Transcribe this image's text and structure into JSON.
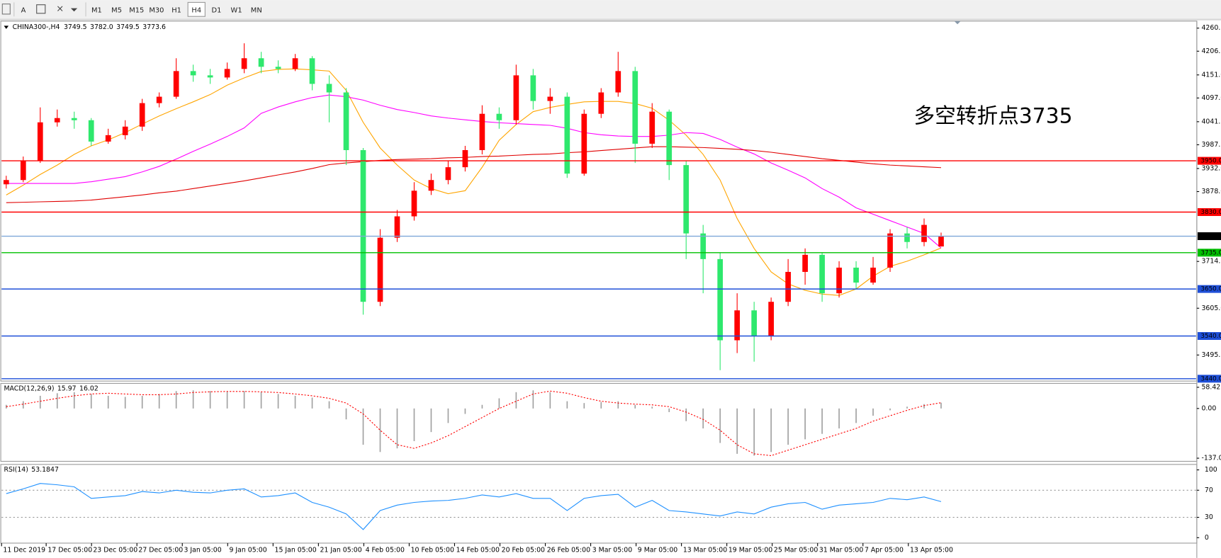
{
  "chart_data": {
    "type": "candlestick",
    "toolbar": {
      "font_button": "A",
      "timeframes": [
        "M1",
        "M5",
        "M15",
        "M30",
        "H1",
        "H4",
        "D1",
        "W1",
        "MN"
      ],
      "active": "H4"
    },
    "title": "CHINA300-,H4",
    "header_ohlc": [
      3749.5,
      {
        "value": 3782,
        "label": "3782.0"
      },
      3749.5,
      3773.6
    ],
    "annotation": "多空转折点3735",
    "annotation_color": "#ff0000",
    "up_color": "#ff0000",
    "down_color": "#2ee86d",
    "candles": [
      [
        3895,
        3915,
        3885,
        3905
      ],
      [
        3905,
        3960,
        3900,
        3950
      ],
      [
        3950,
        4075,
        3945,
        4040
      ],
      [
        4040,
        4070,
        4030,
        4050
      ],
      [
        4050,
        4065,
        4025,
        4045
      ],
      [
        4045,
        4050,
        3985,
        3995
      ],
      [
        3995,
        4025,
        3990,
        4010
      ],
      [
        4010,
        4045,
        4000,
        4030
      ],
      [
        4030,
        4095,
        4020,
        4085
      ],
      [
        4085,
        4110,
        4075,
        4100
      ],
      [
        4100,
        4190,
        4095,
        4160
      ],
      [
        4160,
        4175,
        4135,
        4150
      ],
      [
        4150,
        4165,
        4130,
        4145
      ],
      [
        4145,
        4180,
        4140,
        4165
      ],
      [
        4165,
        4225,
        4155,
        4190
      ],
      [
        4190,
        4205,
        4155,
        4170
      ],
      [
        4170,
        4185,
        4155,
        4165
      ],
      [
        4165,
        4200,
        4160,
        4190
      ],
      [
        4190,
        4195,
        4115,
        4130
      ],
      [
        4130,
        4150,
        4040,
        4110
      ],
      [
        4110,
        4120,
        3940,
        3975
      ],
      [
        3975,
        3980,
        3590,
        3620
      ],
      [
        3620,
        3790,
        3610,
        3770
      ],
      [
        3770,
        3835,
        3760,
        3820
      ],
      [
        3820,
        3900,
        3810,
        3880
      ],
      [
        3880,
        3920,
        3870,
        3905
      ],
      [
        3905,
        3950,
        3895,
        3935
      ],
      [
        3935,
        3985,
        3925,
        3975
      ],
      [
        3975,
        4080,
        3965,
        4060
      ],
      [
        4060,
        4075,
        4025,
        4045
      ],
      [
        4045,
        4175,
        4035,
        4150
      ],
      [
        4150,
        4165,
        4070,
        4090
      ],
      [
        4090,
        4120,
        4060,
        4100
      ],
      [
        4100,
        4110,
        3910,
        3920
      ],
      [
        3920,
        4070,
        3915,
        4060
      ],
      [
        4060,
        4120,
        4050,
        4110
      ],
      [
        4110,
        4205,
        4100,
        4160
      ],
      [
        4160,
        4170,
        3945,
        3990
      ],
      [
        3990,
        4085,
        3980,
        4065
      ],
      [
        4065,
        4070,
        3905,
        3940
      ],
      [
        3940,
        3950,
        3720,
        3780
      ],
      [
        3780,
        3800,
        3640,
        3720
      ],
      [
        3720,
        3735,
        3460,
        3530
      ],
      [
        3530,
        3640,
        3500,
        3600
      ],
      [
        3600,
        3620,
        3480,
        3540
      ],
      [
        3540,
        3630,
        3530,
        3620
      ],
      [
        3620,
        3720,
        3610,
        3690
      ],
      [
        3690,
        3745,
        3660,
        3730
      ],
      [
        3730,
        3735,
        3620,
        3640
      ],
      [
        3640,
        3715,
        3630,
        3700
      ],
      [
        3700,
        3715,
        3650,
        3665
      ],
      [
        3665,
        3725,
        3660,
        3700
      ],
      [
        3700,
        3790,
        3690,
        3780
      ],
      [
        3780,
        3795,
        3745,
        3760
      ],
      [
        3760,
        3815,
        3750,
        3800
      ],
      [
        3749.5,
        3782,
        3749.5,
        3773.6
      ]
    ],
    "ma": [
      {
        "color": "#ffa500",
        "values": [
          3870,
          3893,
          3918,
          3940,
          3965,
          3985,
          3999,
          4016,
          4036,
          4055,
          4072,
          4088,
          4105,
          4127,
          4144,
          4159,
          4164,
          4165,
          4163,
          4160,
          4115,
          4040,
          3980,
          3940,
          3905,
          3885,
          3873,
          3880,
          3935,
          3998,
          4035,
          4065,
          4075,
          4082,
          4088,
          4089,
          4089,
          4084,
          4073,
          4045,
          4010,
          3965,
          3905,
          3815,
          3745,
          3690,
          3662,
          3647,
          3638,
          3635,
          3650,
          3680,
          3703,
          3715,
          3730,
          3746
        ]
      },
      {
        "color": "#ff00ff",
        "values": [
          3897,
          3897,
          3897,
          3897,
          3897,
          3901,
          3907,
          3913,
          3924,
          3937,
          3954,
          3972,
          3989,
          4007,
          4027,
          4061,
          4076,
          4088,
          4098,
          4104,
          4100,
          4092,
          4080,
          4070,
          4063,
          4055,
          4050,
          4046,
          4042,
          4039,
          4037,
          4035,
          4033,
          4026,
          4016,
          4011,
          4008,
          4007,
          4007,
          4010,
          4016,
          4014,
          4000,
          3982,
          3966,
          3945,
          3928,
          3910,
          3885,
          3865,
          3840,
          3825,
          3810,
          3795,
          3780,
          3746
        ]
      },
      {
        "color": "#e00000",
        "values": [
          3852,
          3853,
          3854,
          3855,
          3856,
          3858,
          3862,
          3866,
          3870,
          3875,
          3879,
          3885,
          3891,
          3897,
          3903,
          3910,
          3917,
          3924,
          3932,
          3941,
          3945,
          3948,
          3951,
          3953,
          3954,
          3955,
          3957,
          3958,
          3960,
          3961,
          3963,
          3965,
          3966,
          3969,
          3971,
          3974,
          3977,
          3980,
          3983,
          3983,
          3982,
          3981,
          3979,
          3977,
          3974,
          3970,
          3965,
          3960,
          3955,
          3951,
          3947,
          3943,
          3940,
          3938,
          3936,
          3934
        ]
      }
    ],
    "ylim": [
      3440,
      4260.5
    ],
    "yticks": [
      4260.5,
      4206.5,
      {
        "value": 4151,
        "label": "4151.0"
      },
      {
        "value": 4097,
        "label": "4097.0"
      },
      4041.5,
      3987.5,
      {
        "value": 3932,
        "label": "3932.0"
      },
      {
        "value": 3878,
        "label": "3878.0"
      },
      3714.5,
      {
        "value": 3605,
        "label": "3605.0"
      },
      3495.5
    ],
    "levels": [
      {
        "value": 3950,
        "label": "3950.0",
        "color": "#ff0000"
      },
      {
        "value": 3830,
        "label": "3830.0",
        "color": "#ff0000"
      },
      {
        "value": 3773.6,
        "color": "#7fa8d8",
        "label_color": "#000000"
      },
      {
        "value": 3735,
        "label": "3735.0",
        "color": "#00c000"
      },
      {
        "value": 3650,
        "label": "3650.0",
        "color": "#1e4fd8"
      },
      {
        "value": 3540,
        "label": "3540.0",
        "color": "#1e4fd8"
      },
      {
        "value": 3440,
        "label": "3440.0",
        "color": "#1e4fd8"
      }
    ],
    "time_labels": [
      "11 Dec 2019",
      "17 Dec 05:00",
      "23 Dec 05:00",
      "27 Dec 05:00",
      "3 Jan 05:00",
      "9 Jan 05:00",
      "15 Jan 05:00",
      "21 Jan 05:00",
      "4 Feb 05:00",
      "10 Feb 05:00",
      "14 Feb 05:00",
      "20 Feb 05:00",
      "26 Feb 05:00",
      "3 Mar 05:00",
      "9 Mar 05:00",
      "13 Mar 05:00",
      "19 Mar 05:00",
      "25 Mar 05:00",
      "31 Mar 05:00",
      "7 Apr 05:00",
      "13 Apr 05:00"
    ],
    "macd": {
      "title": "MACD(12,26,9)",
      "hist_color": "#a0a0a0",
      "signal_color": "#ff0000",
      "hist": [
        10,
        20,
        35,
        42,
        45,
        40,
        35,
        32,
        35,
        40,
        48,
        50,
        48,
        46,
        48,
        45,
        40,
        35,
        30,
        20,
        -30,
        -100,
        -120,
        -110,
        -90,
        -65,
        -40,
        -15,
        10,
        28,
        45,
        50,
        45,
        20,
        15,
        18,
        20,
        10,
        5,
        -10,
        -35,
        -55,
        -95,
        -125,
        -130,
        -120,
        -100,
        -85,
        -70,
        -55,
        -40,
        -20,
        -5,
        5,
        12,
        15.97
      ],
      "signal": [
        5,
        12,
        20,
        28,
        35,
        40,
        42,
        40,
        38,
        38,
        40,
        44,
        46,
        47,
        47,
        46,
        44,
        40,
        35,
        28,
        15,
        -15,
        -60,
        -100,
        -110,
        -95,
        -75,
        -50,
        -25,
        0,
        20,
        40,
        48,
        42,
        30,
        20,
        15,
        12,
        10,
        5,
        -10,
        -30,
        -60,
        -100,
        -125,
        -130,
        -115,
        -100,
        -85,
        -70,
        -55,
        -35,
        -20,
        -5,
        8,
        16.02
      ],
      "ylim": [
        -137.09,
        58.42
      ],
      "yticks": [
        58.42,
        {
          "value": 0,
          "label": "0.00"
        },
        -137.09
      ]
    },
    "rsi": {
      "title": "RSI(14)",
      "color": "#1e90ff",
      "values": [
        65,
        72,
        80,
        78,
        75,
        58,
        60,
        62,
        68,
        66,
        70,
        67,
        66,
        70,
        72,
        60,
        62,
        66,
        52,
        45,
        35,
        12,
        40,
        48,
        52,
        54,
        55,
        58,
        63,
        60,
        65,
        58,
        58,
        40,
        58,
        62,
        64,
        45,
        55,
        40,
        38,
        35,
        32,
        38,
        35,
        45,
        50,
        52,
        42,
        48,
        50,
        52,
        58,
        56,
        60,
        53.1847
      ],
      "ylim": [
        0,
        100
      ],
      "yticks": [
        100,
        70,
        30,
        0
      ]
    }
  }
}
